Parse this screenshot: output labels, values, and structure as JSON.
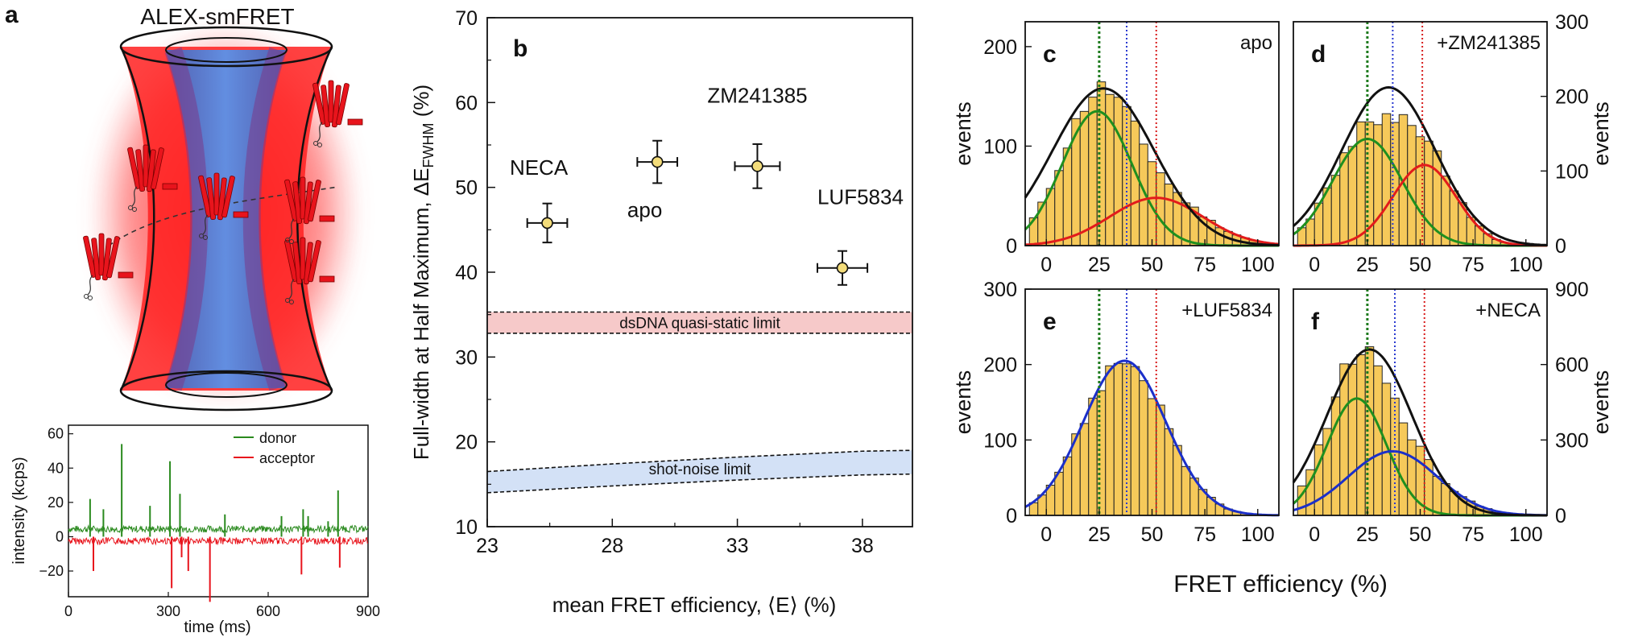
{
  "colors": {
    "red": "#e8141c",
    "blue_tube": "#4a7fd6",
    "green": "#2a8a1e",
    "fit_green": "#1f8f1f",
    "fit_red": "#e21b1b",
    "fit_blue": "#1b2fc9",
    "hist_fill": "#f6c95a",
    "marker_fill": "#f3dc7a",
    "pink_band": "#f6c9c9",
    "blue_band": "#d3e1f6",
    "dot_green": "#1d7a1d",
    "dot_blue": "#2a3ad0",
    "dot_red": "#d81c1c"
  },
  "panel_a": {
    "letter": "a",
    "title": "ALEX-smFRET",
    "trace": {
      "ylabel": "intensity (kcps)",
      "xlabel": "time (ms)",
      "xticks": [
        0,
        300,
        600,
        900
      ],
      "yticks": [
        60,
        40,
        20,
        0,
        -20
      ],
      "ytick_labels": [
        "60",
        "40",
        "20",
        "0",
        "−20"
      ],
      "xlim": [
        0,
        900
      ],
      "ylim": [
        -35,
        65
      ],
      "legend": [
        "donor",
        "acceptor"
      ],
      "donor_spikes": [
        [
          65,
          22
        ],
        [
          105,
          16
        ],
        [
          160,
          54
        ],
        [
          245,
          18
        ],
        [
          305,
          44
        ],
        [
          335,
          25
        ],
        [
          470,
          13
        ],
        [
          640,
          12
        ],
        [
          705,
          16
        ],
        [
          720,
          12
        ],
        [
          780,
          9
        ],
        [
          810,
          27
        ]
      ],
      "acceptor_spikes": [
        [
          75,
          -20
        ],
        [
          310,
          -30
        ],
        [
          340,
          -12
        ],
        [
          360,
          -20
        ],
        [
          425,
          -38
        ],
        [
          700,
          -22
        ],
        [
          815,
          -18
        ]
      ]
    }
  },
  "panel_b": {
    "letter": "b",
    "chart_data": {
      "type": "scatter",
      "title": "",
      "xlabel": "mean FRET efficiency, ⟨E⟩ (%)",
      "ylabel_main": "Full-width at Half Maximum, ΔE",
      "ylabel_sub": "FWHM",
      "ylabel_unit": " (%)",
      "xlim": [
        23,
        40
      ],
      "ylim": [
        10,
        70
      ],
      "xticks": [
        23,
        28,
        33,
        38
      ],
      "yticks": [
        10,
        20,
        30,
        40,
        50,
        60,
        70
      ],
      "points": [
        {
          "label": "NECA",
          "x": 25.4,
          "y": 45.8,
          "xerr": 0.8,
          "yerr": 2.3,
          "label_x": 23.9,
          "label_y": 51.5
        },
        {
          "label": "apo",
          "x": 29.8,
          "y": 53.0,
          "xerr": 0.8,
          "yerr": 2.5,
          "label_x": 28.6,
          "label_y": 46.5
        },
        {
          "label": "ZM241385",
          "x": 33.8,
          "y": 52.5,
          "xerr": 0.9,
          "yerr": 2.6,
          "label_x": 31.8,
          "label_y": 60.0
        },
        {
          "label": "LUF5834",
          "x": 37.2,
          "y": 40.5,
          "xerr": 1.0,
          "yerr": 2.0,
          "label_x": 36.2,
          "label_y": 48.0
        }
      ],
      "bands": [
        {
          "label": "dsDNA quasi-static limit",
          "lower": [
            [
              23,
              32.8
            ],
            [
              40,
              32.8
            ]
          ],
          "upper": [
            [
              23,
              35.3
            ],
            [
              40,
              35.3
            ]
          ]
        },
        {
          "label": "shot-noise limit",
          "lower": [
            [
              23,
              14.0
            ],
            [
              28,
              14.8
            ],
            [
              33,
              15.5
            ],
            [
              38,
              16.1
            ],
            [
              40,
              16.2
            ]
          ],
          "upper": [
            [
              23,
              16.5
            ],
            [
              28,
              17.4
            ],
            [
              33,
              18.2
            ],
            [
              38,
              18.9
            ],
            [
              40,
              19.0
            ]
          ]
        }
      ]
    }
  },
  "hist_axes": {
    "xlabel": "FRET efficiency (%)",
    "ylabel": "events",
    "xticks": [
      0,
      25,
      50,
      75,
      100
    ],
    "xlim": [
      -10,
      110
    ],
    "dotted_lines_x": [
      {
        "x": 25,
        "color": "dot_green"
      },
      {
        "x": 38,
        "color": "dot_blue"
      },
      {
        "x": 52,
        "color": "dot_red"
      }
    ],
    "dotted_lines_x_alt": [
      {
        "x": 25,
        "color": "dot_green"
      },
      {
        "x": 37,
        "color": "dot_blue"
      },
      {
        "x": 51,
        "color": "dot_red"
      }
    ]
  },
  "panels_hist": [
    {
      "letter": "c",
      "label": "apo",
      "ylim": [
        0,
        225
      ],
      "yticks": [
        0,
        100,
        200
      ],
      "axis_side": "left",
      "fits": [
        {
          "color": "fit_black",
          "mu": 27,
          "sigma": 24,
          "amp": 158
        },
        {
          "color": "fit_green",
          "mu": 24,
          "sigma": 16.5,
          "amp": 135
        },
        {
          "color": "fit_red",
          "mu": 52,
          "sigma": 22,
          "amp": 48
        }
      ]
    },
    {
      "letter": "d",
      "label": "+ZM241385",
      "ylim": [
        0,
        300
      ],
      "yticks": [
        0,
        100,
        200,
        300
      ],
      "axis_side": "right",
      "fits": [
        {
          "color": "fit_black",
          "mu": 35,
          "sigma": 22,
          "amp": 212
        },
        {
          "color": "fit_green",
          "mu": 25,
          "sigma": 16.5,
          "amp": 143
        },
        {
          "color": "fit_red",
          "mu": 52,
          "sigma": 15,
          "amp": 108
        }
      ]
    },
    {
      "letter": "e",
      "label": "+LUF5834",
      "ylim": [
        0,
        300
      ],
      "yticks": [
        0,
        100,
        200,
        300
      ],
      "axis_side": "left",
      "fits": [
        {
          "color": "fit_blue",
          "mu": 37,
          "sigma": 19.5,
          "amp": 205
        }
      ]
    },
    {
      "letter": "f",
      "label": "+NECA",
      "ylim": [
        0,
        900
      ],
      "yticks": [
        0,
        300,
        600,
        900
      ],
      "axis_side": "right",
      "fits": [
        {
          "color": "fit_black",
          "mu": 26,
          "sigma": 20,
          "amp": 660
        },
        {
          "color": "fit_green",
          "mu": 20,
          "sigma": 14,
          "amp": 465
        },
        {
          "color": "fit_blue",
          "mu": 37,
          "sigma": 21,
          "amp": 255
        }
      ]
    }
  ]
}
